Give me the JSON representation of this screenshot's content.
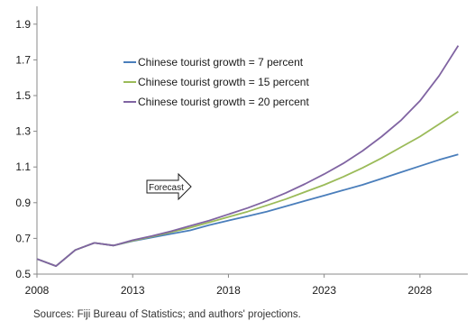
{
  "chart_data": {
    "type": "line",
    "x": [
      2008,
      2009,
      2010,
      2011,
      2012,
      2013,
      2014,
      2015,
      2016,
      2017,
      2018,
      2019,
      2020,
      2021,
      2022,
      2023,
      2024,
      2025,
      2026,
      2027,
      2028,
      2029,
      2030
    ],
    "xticks": [
      2008,
      2013,
      2018,
      2023,
      2028
    ],
    "xlim": [
      2008,
      2030.5
    ],
    "yticks": [
      0.5,
      0.7,
      0.9,
      1.1,
      1.3,
      1.5,
      1.7,
      1.9
    ],
    "ylim": [
      0.5,
      2.0
    ],
    "series": [
      {
        "name": "Chinese tourist growth = 7 percent",
        "color": "#4a7ebb",
        "values": [
          0.585,
          0.545,
          0.635,
          0.675,
          0.66,
          0.685,
          0.705,
          0.725,
          0.745,
          0.775,
          0.8,
          0.825,
          0.85,
          0.88,
          0.91,
          0.94,
          0.97,
          1.0,
          1.035,
          1.07,
          1.105,
          1.14,
          1.17
        ]
      },
      {
        "name": "Chinese tourist growth = 15 percent",
        "color": "#9bbb59",
        "values": [
          0.585,
          0.545,
          0.635,
          0.675,
          0.66,
          0.687,
          0.71,
          0.735,
          0.76,
          0.79,
          0.82,
          0.85,
          0.885,
          0.92,
          0.96,
          1.0,
          1.045,
          1.095,
          1.15,
          1.21,
          1.27,
          1.34,
          1.41
        ]
      },
      {
        "name": "Chinese tourist growth = 20 percent",
        "color": "#8064a2",
        "values": [
          0.585,
          0.545,
          0.635,
          0.675,
          0.66,
          0.69,
          0.713,
          0.74,
          0.77,
          0.8,
          0.835,
          0.87,
          0.91,
          0.955,
          1.005,
          1.06,
          1.12,
          1.19,
          1.27,
          1.36,
          1.47,
          1.61,
          1.78
        ]
      }
    ],
    "annotation": "Forecast",
    "grid": false,
    "legend_position": "top-left"
  },
  "footer": {
    "source": "Sources: Fiji Bureau of Statistics; and authors' projections."
  }
}
